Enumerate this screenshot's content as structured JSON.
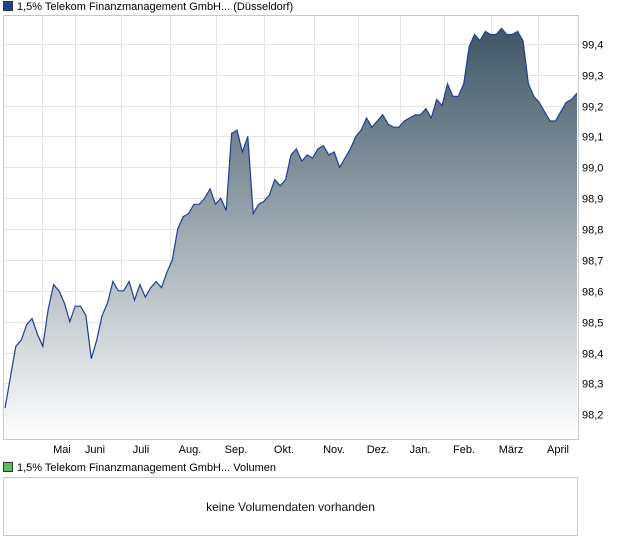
{
  "legend": {
    "price": "1,5% Telekom Finanzmanagement GmbH... (Düsseldorf)",
    "volume": "1,5% Telekom Finanzmanagement GmbH... Volumen",
    "price_color": "#1f3f8f",
    "volume_color": "#5fbf5f"
  },
  "volume_panel": {
    "message": "keine Volumendaten vorhanden"
  },
  "chart_data": {
    "type": "area",
    "title": "",
    "xlabel": "",
    "ylabel": "",
    "x_ticks": [
      "Mai",
      "Juni",
      "Juli",
      "Aug.",
      "Sep.",
      "Okt.",
      "Nov.",
      "Dez.",
      "Jan.",
      "Feb.",
      "März",
      "April"
    ],
    "y_ticks": [
      "99,4",
      "99,3",
      "99,2",
      "99,1",
      "99,0",
      "98,9",
      "98,8",
      "98,7",
      "98,6",
      "98,5",
      "98,4",
      "98,3",
      "98,2"
    ],
    "ylim": [
      98.12,
      99.49
    ],
    "y_axis_position": "right",
    "grid": true,
    "line_color": "#1f3f8f",
    "fill_top_color": "#3f5566",
    "fill_bottom_color": "#ffffff",
    "series": [
      {
        "name": "1,5% Telekom Finanzmanagement GmbH... (Düsseldorf)",
        "values": [
          98.22,
          98.32,
          98.42,
          98.44,
          98.49,
          98.51,
          98.46,
          98.42,
          98.54,
          98.62,
          98.6,
          98.56,
          98.5,
          98.55,
          98.55,
          98.52,
          98.38,
          98.44,
          98.52,
          98.56,
          98.63,
          98.6,
          98.6,
          98.63,
          98.57,
          98.62,
          98.58,
          98.61,
          98.63,
          98.61,
          98.66,
          98.7,
          98.8,
          98.84,
          98.85,
          98.88,
          98.88,
          98.9,
          98.93,
          98.88,
          98.9,
          98.86,
          99.11,
          99.12,
          99.05,
          99.1,
          98.85,
          98.88,
          98.89,
          98.91,
          98.96,
          98.94,
          98.96,
          99.04,
          99.06,
          99.02,
          99.04,
          99.03,
          99.06,
          99.07,
          99.04,
          99.05,
          99.0,
          99.03,
          99.06,
          99.1,
          99.12,
          99.16,
          99.13,
          99.15,
          99.17,
          99.14,
          99.13,
          99.13,
          99.15,
          99.16,
          99.17,
          99.17,
          99.19,
          99.16,
          99.22,
          99.2,
          99.27,
          99.23,
          99.23,
          99.27,
          99.39,
          99.43,
          99.41,
          99.44,
          99.43,
          99.43,
          99.45,
          99.43,
          99.43,
          99.44,
          99.41,
          99.27,
          99.23,
          99.21,
          99.18,
          99.15,
          99.15,
          99.18,
          99.21,
          99.22,
          99.24
        ]
      }
    ]
  }
}
